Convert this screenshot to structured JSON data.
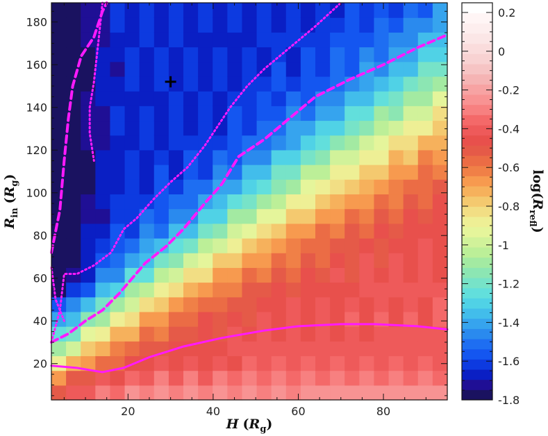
{
  "chart_data": {
    "type": "heatmap",
    "title": "",
    "xlabel": {
      "main": "H",
      "paren_open": "(",
      "sym": "R",
      "sub": "g",
      "paren_close": ")"
    },
    "ylabel": {
      "main": "R",
      "main_sub": "in",
      "paren_open": "(",
      "sym": "R",
      "sub": "g",
      "paren_close": ")"
    },
    "colorbar_label": {
      "prefix": "log(",
      "sym": "R",
      "sub": "refl",
      "suffix": ")"
    },
    "xlim": [
      2,
      95
    ],
    "ylim": [
      3,
      189
    ],
    "xticks": [
      20,
      40,
      60,
      80
    ],
    "yticks": [
      20,
      40,
      60,
      80,
      100,
      120,
      140,
      160,
      180
    ],
    "colorbar": {
      "range": [
        -1.8,
        0.25
      ],
      "ticks": [
        0.2,
        0,
        -0.2,
        -0.4,
        -0.6,
        -0.8,
        -1,
        -1.2,
        -1.4,
        -1.6,
        -1.8
      ],
      "tick_labels": [
        "0.2",
        "0",
        "-0.2",
        "-0.4",
        "-0.6",
        "-0.8",
        "-1",
        "-1.2",
        "-1.4",
        "-1.6",
        "-1.8"
      ],
      "levels": 41,
      "colors": [
        "#1a1260",
        "#1f0f95",
        "#0a1fc4",
        "#0d3ae0",
        "#1456f0",
        "#1e6ef2",
        "#2a8aee",
        "#36a4ee",
        "#42bdeb",
        "#50d2e6",
        "#62dfdc",
        "#77e3c8",
        "#8ce6b3",
        "#a3eaa2",
        "#bcef98",
        "#d1f29a",
        "#e5f59b",
        "#eeef95",
        "#f2de84",
        "#f4c96f",
        "#f6b15c",
        "#f79a4f",
        "#f08047",
        "#eb6c45",
        "#e55a48",
        "#e8504c",
        "#ee5a5a",
        "#f46969",
        "#f78080",
        "#f89393",
        "#f7a3a3",
        "#f5b4b4",
        "#f6c4c4",
        "#f8d2d2",
        "#fadcdc",
        "#fbe6e6",
        "#fdeeee",
        "#fff5f5",
        "#ffffff"
      ]
    },
    "grid": {
      "nx": 27,
      "ny": 27,
      "value_formula": "log(R_refl) as a function of H and R_in"
    },
    "contours": [
      {
        "style": "solid",
        "color": "#ff1aff",
        "points": [
          [
            2,
            19
          ],
          [
            8,
            18
          ],
          [
            14,
            16
          ],
          [
            19,
            18
          ],
          [
            25,
            23
          ],
          [
            33,
            28
          ],
          [
            42,
            32
          ],
          [
            52,
            35.5
          ],
          [
            60,
            37.5
          ],
          [
            70,
            38.5
          ],
          [
            78,
            38.5
          ],
          [
            88,
            37.5
          ],
          [
            95,
            36
          ]
        ]
      },
      {
        "style": "dashed",
        "color": "#ff1aff",
        "points": [
          [
            2,
            30
          ],
          [
            6,
            34
          ],
          [
            10,
            40
          ],
          [
            14,
            45
          ],
          [
            18,
            53
          ],
          [
            21,
            60
          ],
          [
            24,
            67
          ],
          [
            29,
            75
          ],
          [
            33,
            83
          ],
          [
            38,
            95
          ],
          [
            42,
            104
          ],
          [
            46,
            117
          ],
          [
            52,
            125
          ],
          [
            58,
            135
          ],
          [
            64,
            145
          ],
          [
            72,
            153
          ],
          [
            80,
            160
          ],
          [
            88,
            168
          ],
          [
            95,
            174
          ]
        ]
      },
      {
        "style": "dotted",
        "color": "#ff1aff",
        "points": [
          [
            2,
            30
          ],
          [
            4,
            45
          ],
          [
            5,
            62
          ],
          [
            8,
            62
          ],
          [
            12,
            66
          ],
          [
            16,
            72
          ],
          [
            19,
            83
          ],
          [
            22,
            88
          ],
          [
            26,
            97
          ],
          [
            30,
            105
          ],
          [
            34,
            112
          ],
          [
            38,
            122
          ],
          [
            40,
            128
          ],
          [
            44,
            140
          ],
          [
            48,
            150
          ],
          [
            52,
            158
          ],
          [
            58,
            168
          ],
          [
            64,
            178
          ],
          [
            70,
            189
          ]
        ]
      },
      {
        "style": "dashed",
        "color": "#ff1aff",
        "points": [
          [
            2,
            72
          ],
          [
            4,
            92
          ],
          [
            5,
            115
          ],
          [
            6,
            135
          ],
          [
            7,
            150
          ],
          [
            9,
            164
          ],
          [
            12,
            173
          ],
          [
            14,
            185
          ],
          [
            15,
            189
          ]
        ]
      },
      {
        "style": "dotted",
        "color": "#ff1aff",
        "points": [
          [
            2,
            65
          ],
          [
            3,
            50
          ],
          [
            5,
            40
          ]
        ]
      },
      {
        "style": "dotted",
        "color": "#ff1aff",
        "points": [
          [
            14,
            189
          ],
          [
            13,
            170
          ],
          [
            12,
            152
          ],
          [
            11,
            140
          ],
          [
            11,
            128
          ],
          [
            12,
            115
          ]
        ]
      }
    ],
    "markers": [
      {
        "symbol": "+",
        "x": 30,
        "y": 152,
        "color": "#000000"
      }
    ]
  }
}
